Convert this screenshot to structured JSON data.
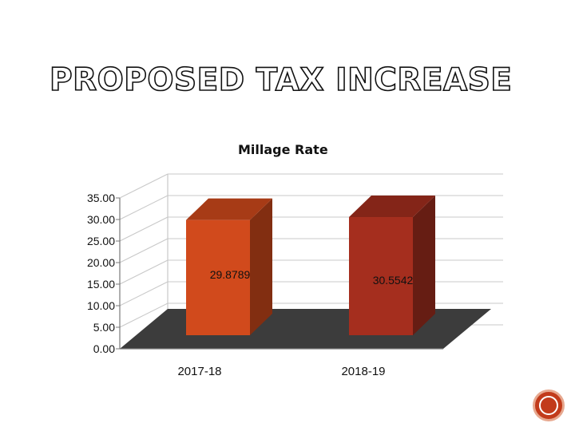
{
  "slide": {
    "title": "PROPOSED TAX INCREASE"
  },
  "chart_data": {
    "type": "bar",
    "title": "Millage Rate",
    "categories": [
      "2017-18",
      "2018-19"
    ],
    "series": [
      {
        "values": [
          29.8789,
          30.5542
        ]
      }
    ],
    "data_labels": [
      "29.8789",
      "30.5542"
    ],
    "ylim": [
      0,
      35
    ],
    "yticks": [
      35,
      30,
      25,
      20,
      15,
      10,
      5,
      0
    ],
    "ytick_labels": [
      "35.00",
      "30.00",
      "25.00",
      "20.00",
      "15.00",
      "10.00",
      "5.00",
      "0.00"
    ],
    "xlabel": "",
    "ylabel": "",
    "grid": true,
    "bar_colors": [
      "#d14a1c",
      "#a52e1e"
    ],
    "floor_color": "#3c3c3c"
  },
  "nav": {
    "icon": "circle-nav-icon",
    "color": "#c23b1b"
  }
}
